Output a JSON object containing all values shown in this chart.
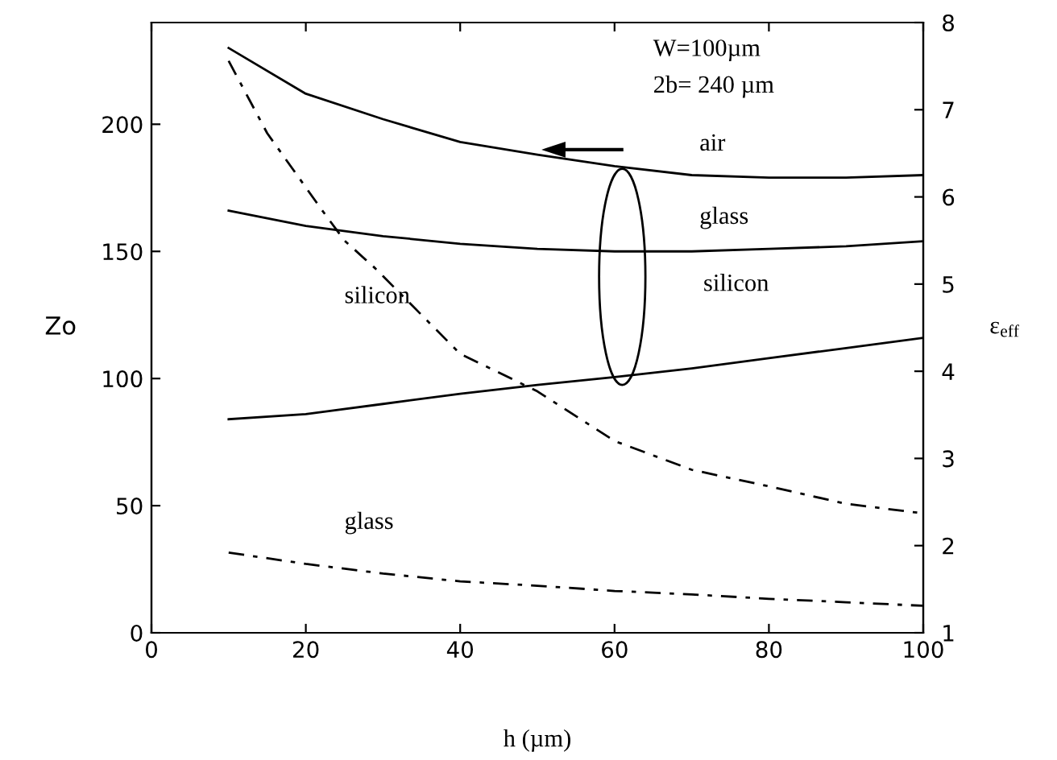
{
  "chart_data": {
    "type": "line",
    "xlabel": "h (µm)",
    "ylabel": "Zo",
    "y2label": "ε$_{eff}$",
    "x": [
      10,
      20,
      30,
      40,
      50,
      60,
      70,
      80,
      90,
      100
    ],
    "series": [
      {
        "color": "#000000",
        "line_style": "solid",
        "values": [
          230,
          212,
          202,
          193,
          188,
          183.5,
          180,
          179,
          179,
          180
        ]
      },
      {
        "color": "#000000",
        "line_style": "solid",
        "values": [
          166,
          160,
          156,
          153,
          151,
          150,
          150,
          151,
          152,
          154
        ]
      },
      {
        "color": "#000000",
        "line_style": "solid",
        "values": [
          84,
          86,
          90,
          94,
          97.5,
          100.6,
          104,
          108,
          112,
          116
        ]
      },
      {
        "color": "#000000",
        "line_style": "dashed",
        "axis": "y2",
        "x": [
          10,
          15,
          22,
          25,
          29,
          40,
          50,
          60,
          70,
          80,
          90,
          100
        ],
        "values": [
          7.56,
          6.73,
          5.86,
          5.5,
          5.18,
          4.2,
          3.77,
          3.2,
          2.87,
          2.68,
          2.48,
          2.37
        ]
      },
      {
        "color": "#000000",
        "line_style": "dashed",
        "axis": "y2",
        "values": [
          1.92,
          1.79,
          1.68,
          1.59,
          1.54,
          1.48,
          1.44,
          1.39,
          1.35,
          1.31
        ]
      }
    ],
    "xlim": [
      0,
      100
    ],
    "xticks": [
      0,
      20,
      40,
      60,
      80,
      100
    ],
    "ylim": [
      0,
      240
    ],
    "yticks": [
      0,
      50,
      100,
      150,
      200
    ],
    "y2lim": [
      1,
      8
    ],
    "y2ticks": [
      1,
      2,
      3,
      4,
      5,
      6,
      7,
      8
    ],
    "grid": false,
    "legend": false,
    "marker": "none",
    "annotations": [
      "W=100µm",
      "2b= 240 µm",
      "air",
      "glass",
      "silicon",
      "silicon",
      "glass"
    ]
  }
}
